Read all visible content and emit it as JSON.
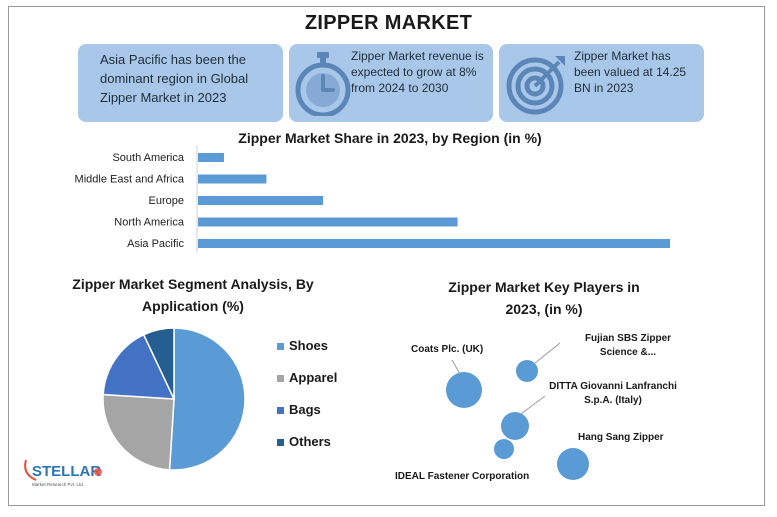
{
  "header": {
    "title": "ZIPPER MARKET"
  },
  "cards": [
    {
      "text": "Asia Pacific has been the dominant region in Global Zipper Market in 2023",
      "icon": "none"
    },
    {
      "text": "Zipper Market revenue is expected to grow at 8% from 2024 to 2030",
      "icon": "stopwatch-icon"
    },
    {
      "text": "Zipper Market has been valued at 14.25 BN in 2023",
      "icon": "target-icon"
    }
  ],
  "colors": {
    "card": "#a9c8e9",
    "bar": "#5b9bd5",
    "icon": "#5b86b8"
  },
  "chart_data": [
    {
      "type": "bar",
      "orientation": "horizontal",
      "title": "Zipper Market Share in 2023, by Region (in %)",
      "categories": [
        "South America",
        "Middle East and Africa",
        "Europe",
        "North America",
        "Asia Pacific"
      ],
      "values": [
        5.5,
        14.5,
        26.5,
        55,
        100
      ],
      "xlim": [
        0,
        100
      ],
      "grid": false,
      "color": "#5b9bd5"
    },
    {
      "type": "pie",
      "title": "Zipper Market Segment Analysis, By Application  (%)",
      "labels": [
        "Shoes",
        "Apparel",
        "Bags",
        "Others"
      ],
      "values": [
        51,
        25,
        17,
        7
      ],
      "colors": [
        "#5b9bd5",
        "#a5a5a5",
        "#4472c4",
        "#255e91"
      ],
      "legend": "right"
    },
    {
      "type": "scatter",
      "subtype": "bubble",
      "title": "Zipper Market Key Players in 2023, (in %)",
      "points": [
        {
          "label": "Coats Plc. (UK)",
          "size": 36
        },
        {
          "label": "Fujian SBS Zipper Science &...",
          "size": 22
        },
        {
          "label": "DITTA Giovanni Lanfranchi S.p.A. (Italy)",
          "size": 28
        },
        {
          "label": "IDEAL Fastener Corporation",
          "size": 20
        },
        {
          "label": "Hang Sang Zipper",
          "size": 32
        }
      ],
      "color": "#5b9bd5"
    }
  ],
  "logo": {
    "text": "STELLAR",
    "subtext": "Market Research Pvt. Ltd."
  }
}
